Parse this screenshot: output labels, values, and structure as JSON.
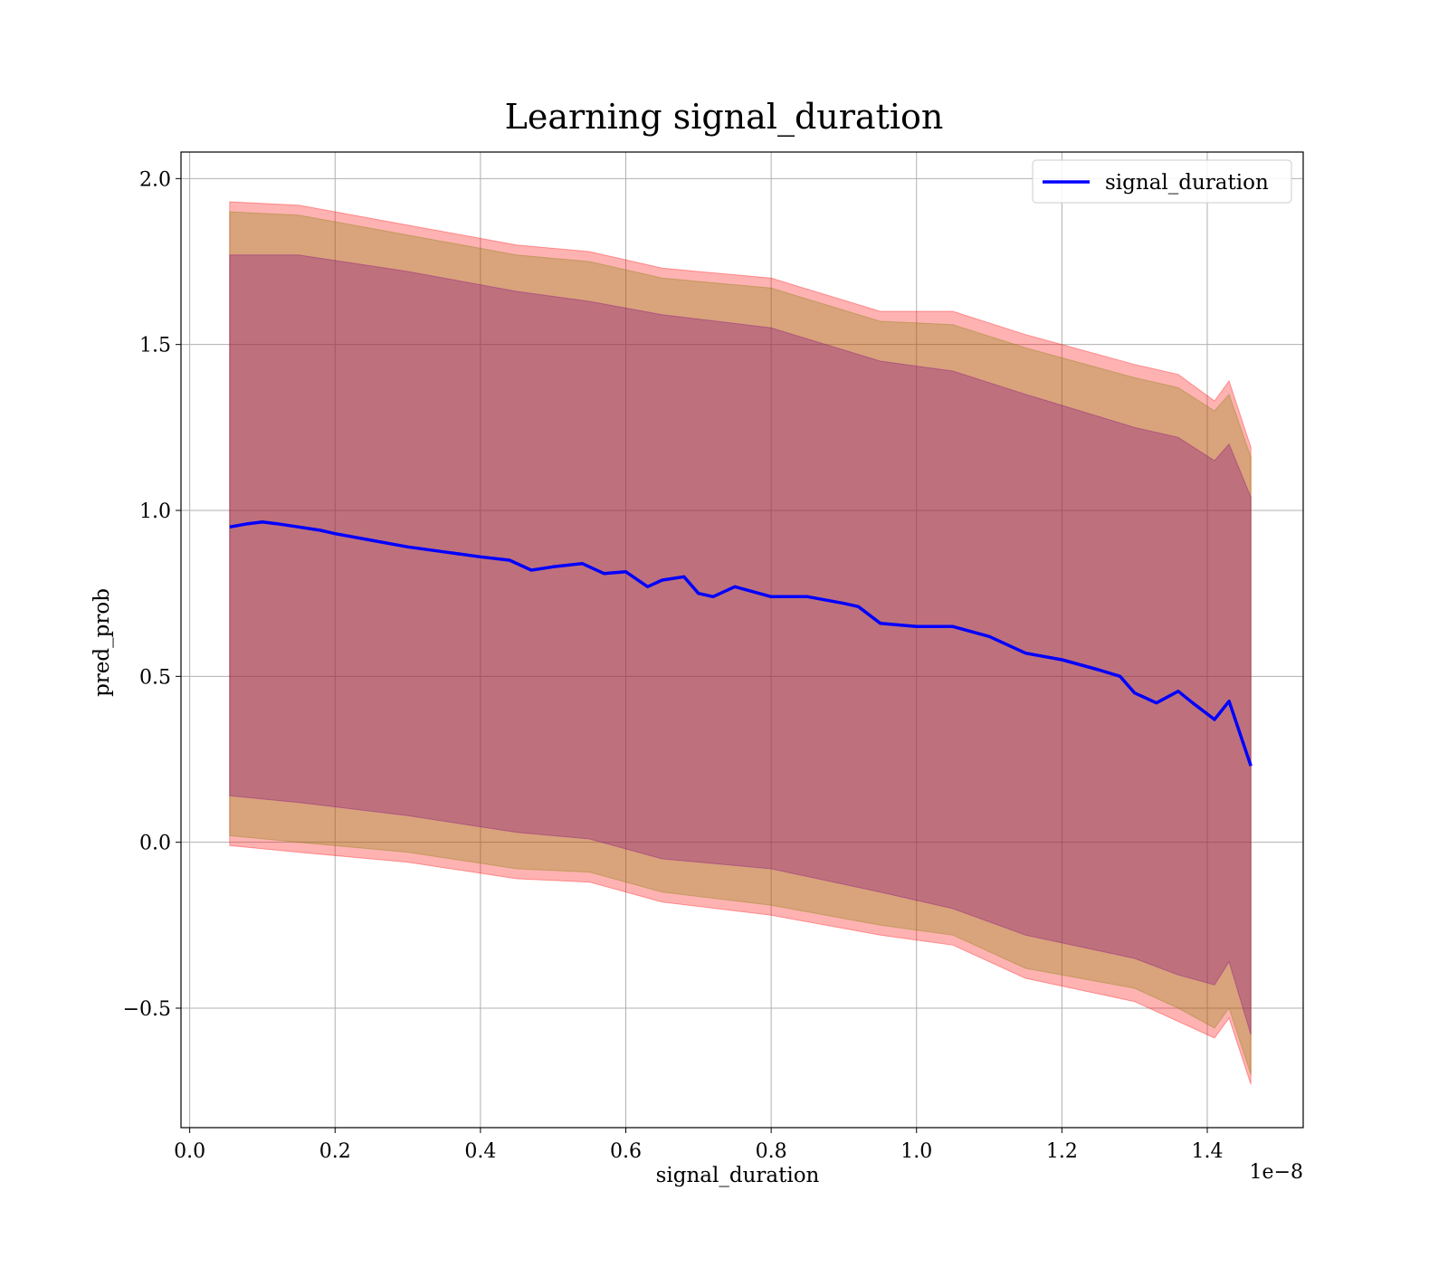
{
  "chart_data": {
    "type": "line",
    "title": "Learning signal_duration",
    "xlabel": "signal_duration",
    "ylabel": "pred_prob",
    "x_offset_label": "1e−8",
    "xlim": [
      -0.012,
      1.532
    ],
    "ylim": [
      -0.86,
      2.08
    ],
    "x_ticks": [
      0.0,
      0.2,
      0.4,
      0.6,
      0.8,
      1.0,
      1.2,
      1.4
    ],
    "x_tick_labels": [
      "0.0",
      "0.2",
      "0.4",
      "0.6",
      "0.8",
      "1.0",
      "1.2",
      "1.4"
    ],
    "y_ticks": [
      -0.5,
      0.0,
      0.5,
      1.0,
      1.5,
      2.0
    ],
    "y_tick_labels": [
      "−0.5",
      "0.0",
      "0.5",
      "1.0",
      "1.5",
      "2.0"
    ],
    "grid": true,
    "legend_position": "top-right",
    "colors": {
      "line": "#0000ff",
      "band_outer": "#ff0000",
      "band_middle": "#808000",
      "band_inner": "#800080",
      "grid": "#b0b0b0"
    },
    "series": [
      {
        "name": "signal_duration",
        "x": [
          0.055,
          0.08,
          0.1,
          0.12,
          0.15,
          0.18,
          0.2,
          0.25,
          0.3,
          0.35,
          0.4,
          0.44,
          0.47,
          0.5,
          0.54,
          0.57,
          0.6,
          0.63,
          0.65,
          0.68,
          0.7,
          0.72,
          0.75,
          0.8,
          0.85,
          0.9,
          0.92,
          0.95,
          1.0,
          1.05,
          1.1,
          1.15,
          1.2,
          1.25,
          1.28,
          1.3,
          1.33,
          1.36,
          1.38,
          1.41,
          1.43,
          1.46
        ],
        "y": [
          0.95,
          0.96,
          0.965,
          0.96,
          0.95,
          0.94,
          0.93,
          0.91,
          0.89,
          0.875,
          0.86,
          0.85,
          0.82,
          0.83,
          0.84,
          0.81,
          0.815,
          0.77,
          0.79,
          0.8,
          0.75,
          0.74,
          0.77,
          0.74,
          0.74,
          0.72,
          0.71,
          0.66,
          0.65,
          0.65,
          0.62,
          0.57,
          0.55,
          0.52,
          0.5,
          0.45,
          0.42,
          0.455,
          0.42,
          0.37,
          0.425,
          0.23
        ]
      }
    ],
    "bands": [
      {
        "x": [
          0.055,
          0.15,
          0.3,
          0.45,
          0.55,
          0.65,
          0.8,
          0.95,
          1.05,
          1.15,
          1.3,
          1.36,
          1.41,
          1.43,
          1.46
        ],
        "upper": [
          1.93,
          1.92,
          1.86,
          1.8,
          1.78,
          1.73,
          1.7,
          1.6,
          1.6,
          1.53,
          1.44,
          1.41,
          1.33,
          1.39,
          1.19
        ],
        "lower": [
          -0.01,
          -0.03,
          -0.06,
          -0.11,
          -0.12,
          -0.18,
          -0.22,
          -0.28,
          -0.31,
          -0.41,
          -0.48,
          -0.54,
          -0.59,
          -0.53,
          -0.73
        ]
      },
      {
        "x": [
          0.055,
          0.15,
          0.3,
          0.45,
          0.55,
          0.65,
          0.8,
          0.95,
          1.05,
          1.15,
          1.3,
          1.36,
          1.41,
          1.43,
          1.46
        ],
        "upper": [
          1.9,
          1.89,
          1.83,
          1.77,
          1.75,
          1.7,
          1.67,
          1.57,
          1.56,
          1.49,
          1.4,
          1.37,
          1.3,
          1.35,
          1.16
        ],
        "lower": [
          0.02,
          0.0,
          -0.03,
          -0.08,
          -0.09,
          -0.15,
          -0.19,
          -0.25,
          -0.28,
          -0.38,
          -0.44,
          -0.5,
          -0.56,
          -0.5,
          -0.7
        ]
      },
      {
        "x": [
          0.055,
          0.15,
          0.3,
          0.45,
          0.55,
          0.65,
          0.8,
          0.95,
          1.05,
          1.15,
          1.3,
          1.36,
          1.41,
          1.43,
          1.46
        ],
        "upper": [
          1.77,
          1.77,
          1.72,
          1.66,
          1.63,
          1.59,
          1.55,
          1.45,
          1.42,
          1.35,
          1.25,
          1.22,
          1.15,
          1.2,
          1.04
        ],
        "lower": [
          0.14,
          0.12,
          0.08,
          0.03,
          0.01,
          -0.05,
          -0.08,
          -0.15,
          -0.2,
          -0.28,
          -0.35,
          -0.4,
          -0.43,
          -0.36,
          -0.58
        ]
      }
    ]
  }
}
